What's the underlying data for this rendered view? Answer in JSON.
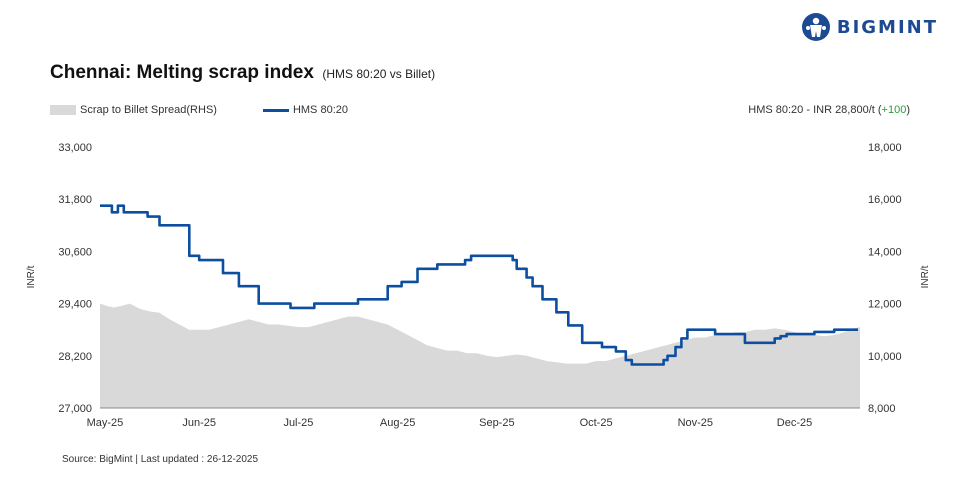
{
  "brand": {
    "name": "BIGMINT",
    "color": "#1c4a93"
  },
  "title": "Chennai: Melting scrap index",
  "subtitle": "(HMS 80:20 vs Billet)",
  "legend": {
    "area_label": "Scrap to Billet Spread(RHS)",
    "line_label": "HMS 80:20"
  },
  "price_note": {
    "text": "HMS 80:20 - INR 28,800/t (",
    "change": "+100",
    "close": ")"
  },
  "source": "Source: BigMint | Last updated : 26-12-2025",
  "colors": {
    "line": "#0d4ea0",
    "area": "#d9d9d9",
    "positive": "#2a9d3c"
  },
  "chart_data": {
    "type": "line",
    "x_ticks": [
      "May-25",
      "Jun-25",
      "Jul-25",
      "Aug-25",
      "Sep-25",
      "Oct-25",
      "Nov-25",
      "Dec-25"
    ],
    "ylabel_left": "INR/t",
    "ylabel_right": "INR/t",
    "ylim_left": [
      27000,
      33000
    ],
    "ylim_right": [
      8000,
      18000
    ],
    "yticks_left": [
      "27,000",
      "28,200",
      "29,400",
      "30,600",
      "31,800",
      "33,000"
    ],
    "yticks_right": [
      "8,000",
      "10,000",
      "12,000",
      "14,000",
      "16,000",
      "18,000"
    ],
    "grid": false,
    "series": [
      {
        "name": "HMS 80:20",
        "axis": "left",
        "kind": "line",
        "x": [
          0,
          0.12,
          0.18,
          0.24,
          0.3,
          0.48,
          0.6,
          0.72,
          0.9,
          0.96,
          1.0,
          1.08,
          1.24,
          1.4,
          1.6,
          1.72,
          1.92,
          2.04,
          2.16,
          2.3,
          2.6,
          2.9,
          3.04,
          3.2,
          3.4,
          3.6,
          3.68,
          3.74,
          3.86,
          4.0,
          4.16,
          4.2,
          4.3,
          4.36,
          4.46,
          4.6,
          4.72,
          4.86,
          5.06,
          5.2,
          5.3,
          5.36,
          5.44,
          5.6,
          5.68,
          5.72,
          5.8,
          5.86,
          5.92,
          6.2,
          6.5,
          6.8,
          6.86,
          6.92,
          6.96,
          7.1,
          7.2,
          7.3,
          7.4,
          7.46,
          7.6,
          7.64
        ],
        "values": [
          31.65,
          31.5,
          31.65,
          31.5,
          31.5,
          31.4,
          31.2,
          31.2,
          30.5,
          30.5,
          30.4,
          30.4,
          30.1,
          29.8,
          29.4,
          29.4,
          29.3,
          29.3,
          29.4,
          29.4,
          29.5,
          29.8,
          29.9,
          30.2,
          30.3,
          30.3,
          30.4,
          30.5,
          30.5,
          30.5,
          30.4,
          30.2,
          30.0,
          29.8,
          29.5,
          29.2,
          28.9,
          28.5,
          28.4,
          28.3,
          28.1,
          28.0,
          28.0,
          28.0,
          28.1,
          28.2,
          28.4,
          28.6,
          28.8,
          28.7,
          28.5,
          28.6,
          28.65,
          28.7,
          28.7,
          28.7,
          28.75,
          28.75,
          28.8,
          28.8,
          28.8,
          28.8
        ]
      },
      {
        "name": "Scrap to Billet Spread(RHS)",
        "axis": "right",
        "kind": "area",
        "x": [
          0,
          0.08,
          0.14,
          0.2,
          0.3,
          0.4,
          0.5,
          0.6,
          0.7,
          0.8,
          0.9,
          1.0,
          1.1,
          1.2,
          1.3,
          1.4,
          1.5,
          1.6,
          1.7,
          1.8,
          1.9,
          2.0,
          2.1,
          2.2,
          2.3,
          2.4,
          2.5,
          2.6,
          2.7,
          2.8,
          2.9,
          3.0,
          3.1,
          3.2,
          3.3,
          3.4,
          3.5,
          3.6,
          3.7,
          3.8,
          3.9,
          4.0,
          4.1,
          4.2,
          4.3,
          4.4,
          4.5,
          4.6,
          4.7,
          4.8,
          4.9,
          5.0,
          5.1,
          5.2,
          5.3,
          5.4,
          5.5,
          5.6,
          5.7,
          5.8,
          5.9,
          6.0,
          6.1,
          6.2,
          6.3,
          6.4,
          6.5,
          6.6,
          6.7,
          6.8,
          6.9,
          7.0,
          7.1,
          7.2,
          7.3,
          7.4,
          7.5,
          7.6,
          7.66
        ],
        "values": [
          12.0,
          11.9,
          11.85,
          11.9,
          12.0,
          11.8,
          11.7,
          11.65,
          11.4,
          11.2,
          11.0,
          11.0,
          11.0,
          11.1,
          11.2,
          11.3,
          11.4,
          11.3,
          11.2,
          11.2,
          11.15,
          11.1,
          11.1,
          11.2,
          11.3,
          11.4,
          11.5,
          11.5,
          11.4,
          11.3,
          11.2,
          11.0,
          10.8,
          10.6,
          10.4,
          10.3,
          10.2,
          10.2,
          10.1,
          10.1,
          10.0,
          9.95,
          10.0,
          10.05,
          10.0,
          9.9,
          9.8,
          9.75,
          9.7,
          9.7,
          9.7,
          9.8,
          9.8,
          9.9,
          10.0,
          10.1,
          10.2,
          10.3,
          10.4,
          10.5,
          10.6,
          10.7,
          10.7,
          10.8,
          10.8,
          10.9,
          10.9,
          11.0,
          11.0,
          11.05,
          11.0,
          10.9,
          10.85,
          10.8,
          10.75,
          10.8,
          10.9,
          11.05,
          11.1
        ]
      }
    ]
  }
}
